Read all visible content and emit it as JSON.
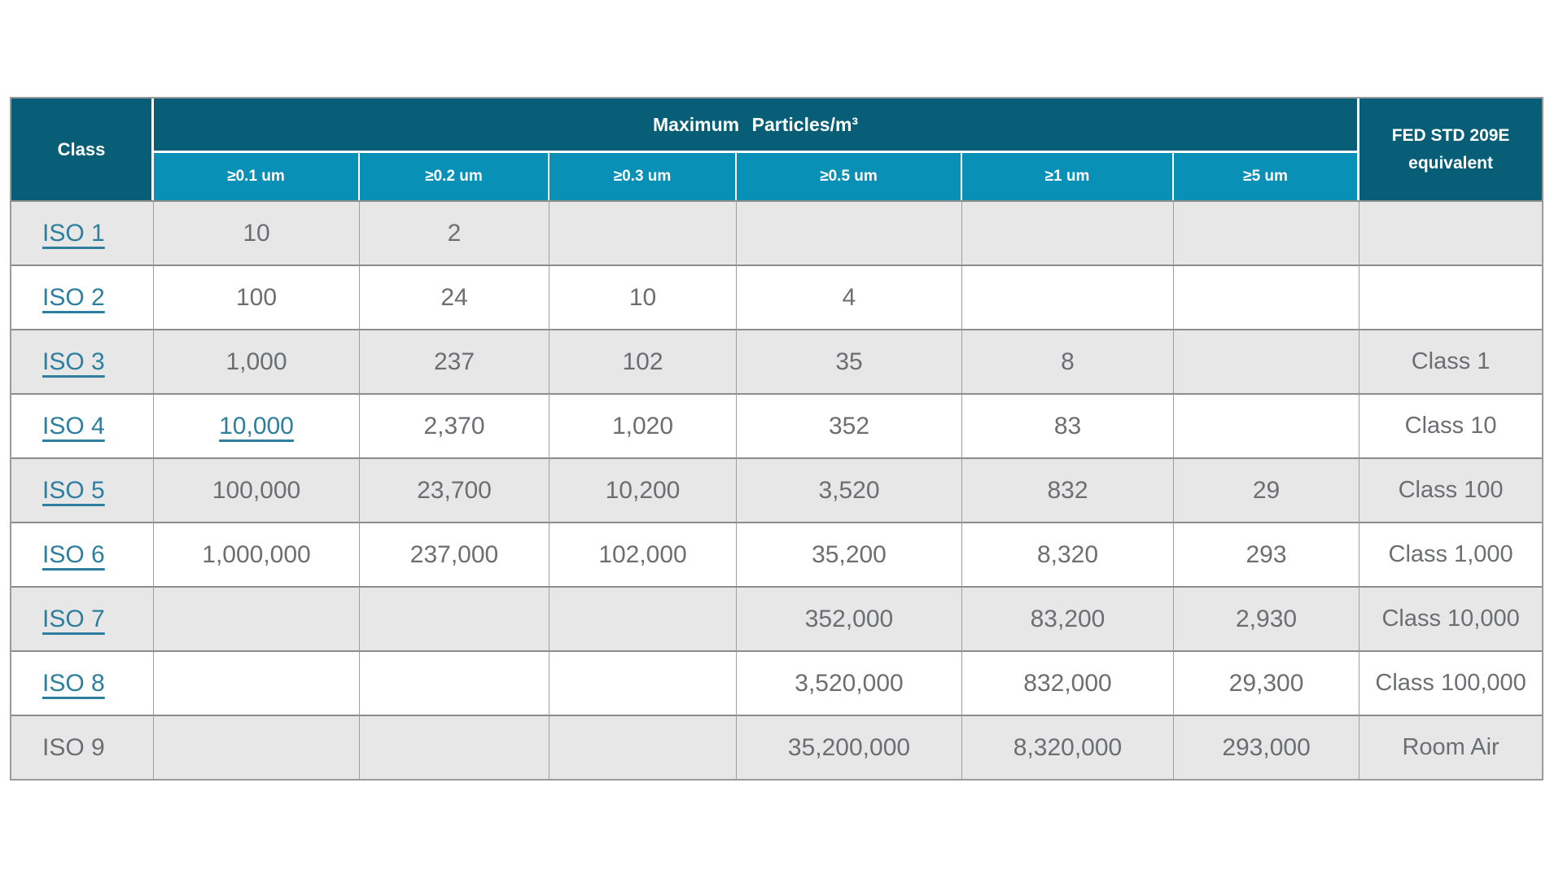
{
  "table": {
    "header": {
      "class_label": "Class",
      "particles_label": "Maximum Particles/m³",
      "fed_label": "FED STD 209E equivalent",
      "size_columns": [
        "≥0.1 um",
        "≥0.2 um",
        "≥0.3 um",
        "≥0.5 um",
        "≥1 um",
        "≥5 um"
      ]
    },
    "rows": [
      {
        "class": "ISO 1",
        "link": true,
        "cells": [
          {
            "text": "10",
            "link": false
          },
          {
            "text": "2",
            "link": false
          },
          {
            "text": "",
            "link": false
          },
          {
            "text": "",
            "link": false
          },
          {
            "text": "",
            "link": false
          },
          {
            "text": "",
            "link": false
          }
        ],
        "fed": ""
      },
      {
        "class": "ISO 2",
        "link": true,
        "cells": [
          {
            "text": "100",
            "link": false
          },
          {
            "text": "24",
            "link": false
          },
          {
            "text": "10",
            "link": false
          },
          {
            "text": "4",
            "link": false
          },
          {
            "text": "",
            "link": false
          },
          {
            "text": "",
            "link": false
          }
        ],
        "fed": ""
      },
      {
        "class": "ISO 3",
        "link": true,
        "cells": [
          {
            "text": "1,000",
            "link": false
          },
          {
            "text": "237",
            "link": false
          },
          {
            "text": "102",
            "link": false
          },
          {
            "text": "35",
            "link": false
          },
          {
            "text": "8",
            "link": false
          },
          {
            "text": "",
            "link": false
          }
        ],
        "fed": "Class 1"
      },
      {
        "class": "ISO 4",
        "link": true,
        "cells": [
          {
            "text": "10,000",
            "link": true
          },
          {
            "text": "2,370",
            "link": false
          },
          {
            "text": "1,020",
            "link": false
          },
          {
            "text": "352",
            "link": false
          },
          {
            "text": "83",
            "link": false
          },
          {
            "text": "",
            "link": false
          }
        ],
        "fed": "Class 10"
      },
      {
        "class": "ISO 5",
        "link": true,
        "cells": [
          {
            "text": "100,000",
            "link": false
          },
          {
            "text": "23,700",
            "link": false
          },
          {
            "text": "10,200",
            "link": false
          },
          {
            "text": "3,520",
            "link": false
          },
          {
            "text": "832",
            "link": false
          },
          {
            "text": "29",
            "link": false
          }
        ],
        "fed": "Class 100"
      },
      {
        "class": "ISO 6",
        "link": true,
        "cells": [
          {
            "text": "1,000,000",
            "link": false
          },
          {
            "text": "237,000",
            "link": false
          },
          {
            "text": "102,000",
            "link": false
          },
          {
            "text": "35,200",
            "link": false
          },
          {
            "text": "8,320",
            "link": false
          },
          {
            "text": "293",
            "link": false
          }
        ],
        "fed": "Class 1,000"
      },
      {
        "class": "ISO 7",
        "link": true,
        "cells": [
          {
            "text": "",
            "link": false
          },
          {
            "text": "",
            "link": false
          },
          {
            "text": "",
            "link": false
          },
          {
            "text": "352,000",
            "link": false
          },
          {
            "text": "83,200",
            "link": false
          },
          {
            "text": "2,930",
            "link": false
          }
        ],
        "fed": "Class 10,000"
      },
      {
        "class": "ISO 8",
        "link": true,
        "cells": [
          {
            "text": "",
            "link": false
          },
          {
            "text": "",
            "link": false
          },
          {
            "text": "",
            "link": false
          },
          {
            "text": "3,520,000",
            "link": false
          },
          {
            "text": "832,000",
            "link": false
          },
          {
            "text": "29,300",
            "link": false
          }
        ],
        "fed": "Class 100,000"
      },
      {
        "class": "ISO 9",
        "link": false,
        "cells": [
          {
            "text": "",
            "link": false
          },
          {
            "text": "",
            "link": false
          },
          {
            "text": "",
            "link": false
          },
          {
            "text": "35,200,000",
            "link": false
          },
          {
            "text": "8,320,000",
            "link": false
          },
          {
            "text": "293,000",
            "link": false
          }
        ],
        "fed": "Room Air"
      }
    ]
  },
  "colors": {
    "header_dark_teal": "#075E76",
    "header_light_teal": "#0890B6",
    "link_teal": "#2E7E9D",
    "cell_text_gray": "#6D6E71",
    "row_stripe_gray": "#E7E7E7",
    "border_gray": "#9A9A9A"
  }
}
